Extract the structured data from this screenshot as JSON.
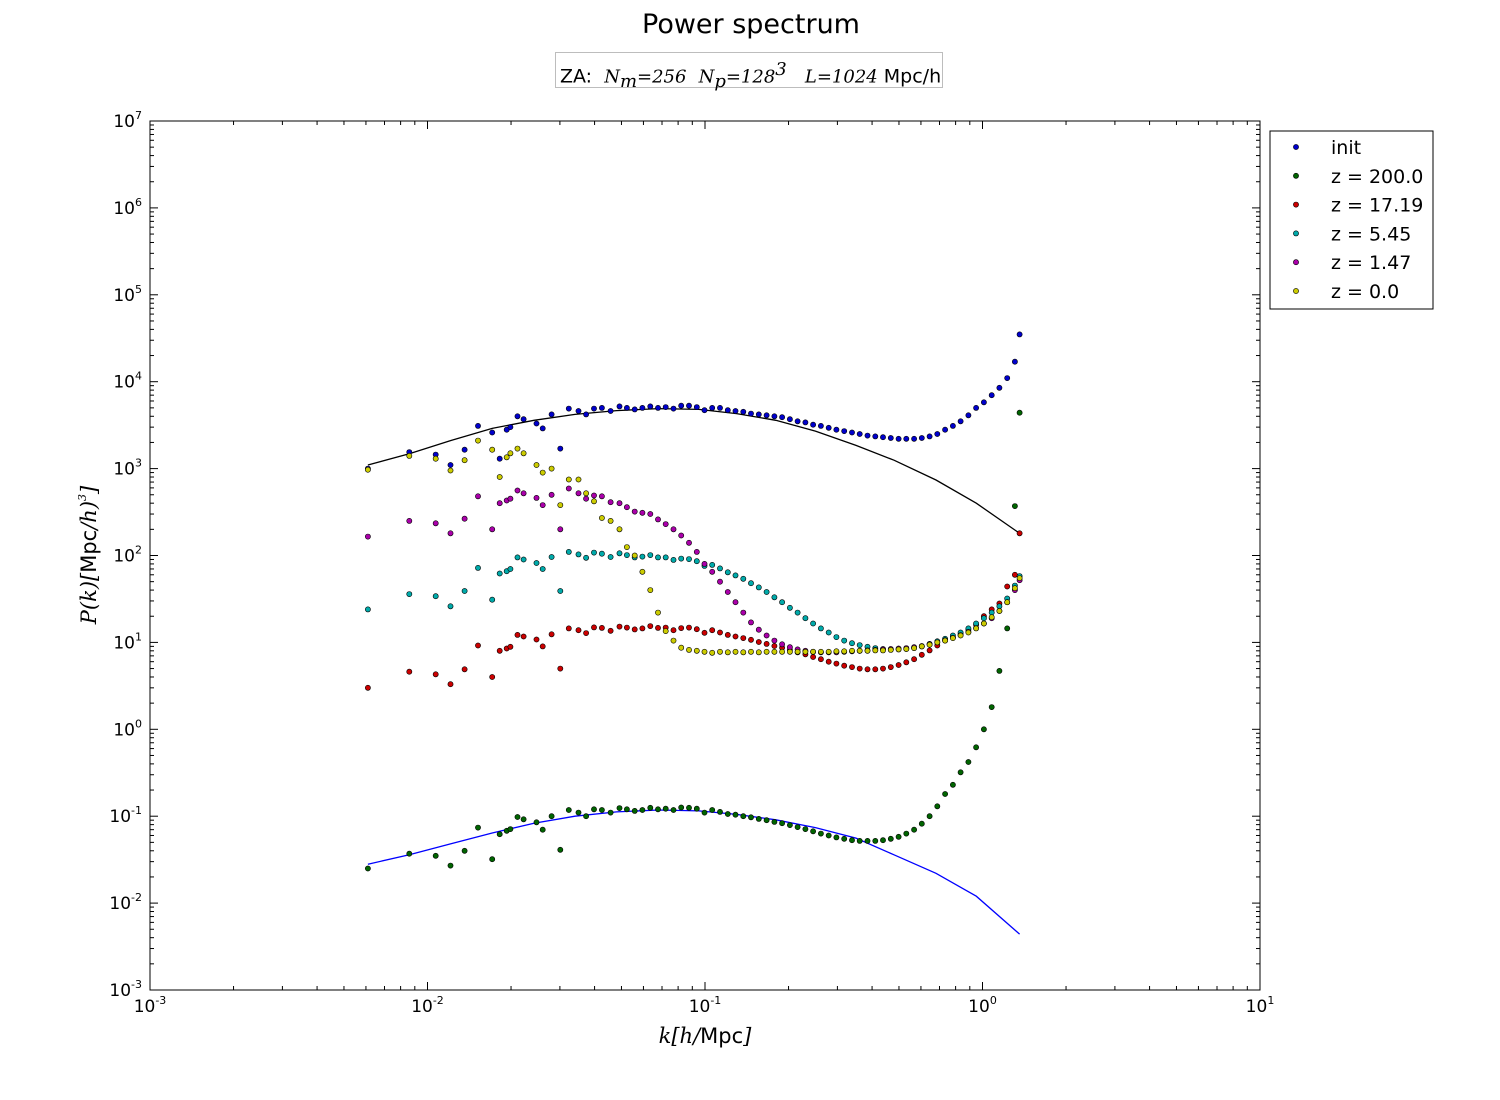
{
  "chart_data": {
    "type": "scatter",
    "title": "Power spectrum",
    "subtitle": {
      "prefix": "ZA:",
      "nm_symbol": "N",
      "nm_sub": "m",
      "nm_value": "=256",
      "np_symbol": "N",
      "np_sub": "p",
      "np_value": "=128",
      "np_sup": "3",
      "l_symbol": "L",
      "l_value": "=1024",
      "units": "Mpc/h"
    },
    "xlabel": {
      "math_pre": "k[h/",
      "text": "Mpc",
      "math_post": "]"
    },
    "ylabel": {
      "math_pre": "P(k)[",
      "text": "Mpc",
      "math_mid": "/h)",
      "sup": "3",
      "math_post": "]"
    },
    "xscale": "log",
    "yscale": "log",
    "xlim": [
      0.001,
      10
    ],
    "ylim": [
      0.001,
      10000000
    ],
    "x_ticks": [
      {
        "value": 0.001,
        "base": "10",
        "exp": "-3"
      },
      {
        "value": 0.01,
        "base": "10",
        "exp": "-2"
      },
      {
        "value": 0.1,
        "base": "10",
        "exp": "-1"
      },
      {
        "value": 1,
        "base": "10",
        "exp": "0"
      },
      {
        "value": 10,
        "base": "10",
        "exp": "1"
      }
    ],
    "y_ticks": [
      {
        "value": 0.001,
        "base": "10",
        "exp": "-3"
      },
      {
        "value": 0.01,
        "base": "10",
        "exp": "-2"
      },
      {
        "value": 0.1,
        "base": "10",
        "exp": "-1"
      },
      {
        "value": 1,
        "base": "10",
        "exp": "0"
      },
      {
        "value": 10,
        "base": "10",
        "exp": "1"
      },
      {
        "value": 100,
        "base": "10",
        "exp": "2"
      },
      {
        "value": 1000,
        "base": "10",
        "exp": "3"
      },
      {
        "value": 10000,
        "base": "10",
        "exp": "4"
      },
      {
        "value": 100000,
        "base": "10",
        "exp": "5"
      },
      {
        "value": 1000000,
        "base": "10",
        "exp": "6"
      },
      {
        "value": 10000000,
        "base": "10",
        "exp": "7"
      }
    ],
    "grid": false,
    "legend_position": "outside-right",
    "series": [
      {
        "name": "init",
        "color": "#0000cc",
        "x": [
          0.0061,
          0.0086,
          0.0107,
          0.0121,
          0.0136,
          0.0152,
          0.0171,
          0.0182,
          0.0193,
          0.0199,
          0.0211,
          0.0222,
          0.0247,
          0.026,
          0.028,
          0.0301,
          0.0323,
          0.035,
          0.0373,
          0.0398,
          0.0425,
          0.0457,
          0.0492,
          0.0523,
          0.0558,
          0.0595,
          0.0635,
          0.0677,
          0.0722,
          0.077,
          0.0821,
          0.0876,
          0.0934,
          0.0996,
          0.1062,
          0.1133,
          0.1208,
          0.1288,
          0.1374,
          0.1465,
          0.1563,
          0.1667,
          0.1778,
          0.1896,
          0.2022,
          0.2157,
          0.23,
          0.2453,
          0.2617,
          0.2791,
          0.2976,
          0.3175,
          0.3386,
          0.3611,
          0.3851,
          0.4107,
          0.438,
          0.4672,
          0.4983,
          0.5314,
          0.5667,
          0.6044,
          0.6446,
          0.6875,
          0.7332,
          0.782,
          0.834,
          0.8894,
          0.9486,
          1.0117,
          1.0789,
          1.1507,
          1.2272,
          1.3088,
          1.3608
        ],
        "y": [
          1000,
          1550,
          1450,
          1100,
          1650,
          3100,
          2600,
          1300,
          2800,
          3000,
          4000,
          3700,
          3300,
          2900,
          4200,
          1700,
          4900,
          4600,
          4200,
          4900,
          5000,
          4600,
          5200,
          5000,
          4800,
          5000,
          5200,
          5000,
          5100,
          4900,
          5300,
          5300,
          5100,
          4700,
          5000,
          5000,
          4700,
          4600,
          4500,
          4300,
          4200,
          4100,
          4000,
          3900,
          3700,
          3500,
          3400,
          3200,
          3100,
          2950,
          2800,
          2700,
          2600,
          2500,
          2400,
          2350,
          2300,
          2250,
          2200,
          2200,
          2200,
          2250,
          2350,
          2500,
          2800,
          3100,
          3500,
          4100,
          5000,
          5800,
          7000,
          8500,
          11000,
          17000,
          35000
        ]
      },
      {
        "name": "z = 200.0",
        "color": "#006400",
        "x": [
          0.0061,
          0.0086,
          0.0107,
          0.0121,
          0.0136,
          0.0152,
          0.0171,
          0.0182,
          0.0193,
          0.0199,
          0.0211,
          0.0222,
          0.0247,
          0.026,
          0.028,
          0.0301,
          0.0323,
          0.035,
          0.0373,
          0.0398,
          0.0425,
          0.0457,
          0.0492,
          0.0523,
          0.0558,
          0.0595,
          0.0635,
          0.0677,
          0.0722,
          0.077,
          0.0821,
          0.0876,
          0.0934,
          0.0996,
          0.1062,
          0.1133,
          0.1208,
          0.1288,
          0.1374,
          0.1465,
          0.1563,
          0.1667,
          0.1778,
          0.1896,
          0.2022,
          0.2157,
          0.23,
          0.2453,
          0.2617,
          0.2791,
          0.2976,
          0.3175,
          0.3386,
          0.3611,
          0.3851,
          0.4107,
          0.438,
          0.4672,
          0.4983,
          0.5314,
          0.5667,
          0.6044,
          0.6446,
          0.6875,
          0.7332,
          0.782,
          0.834,
          0.8894,
          0.9486,
          1.0117,
          1.0789,
          1.1507,
          1.2272,
          1.3088,
          1.3608
        ],
        "y": [
          0.025,
          0.037,
          0.035,
          0.027,
          0.04,
          0.074,
          0.032,
          0.062,
          0.068,
          0.071,
          0.098,
          0.092,
          0.085,
          0.07,
          0.1,
          0.041,
          0.118,
          0.11,
          0.1,
          0.12,
          0.118,
          0.11,
          0.124,
          0.12,
          0.115,
          0.118,
          0.125,
          0.12,
          0.122,
          0.118,
          0.126,
          0.125,
          0.122,
          0.11,
          0.118,
          0.112,
          0.106,
          0.104,
          0.1,
          0.097,
          0.093,
          0.09,
          0.086,
          0.083,
          0.079,
          0.075,
          0.071,
          0.067,
          0.063,
          0.06,
          0.057,
          0.055,
          0.053,
          0.052,
          0.052,
          0.052,
          0.053,
          0.055,
          0.058,
          0.063,
          0.07,
          0.082,
          0.1,
          0.13,
          0.18,
          0.23,
          0.32,
          0.42,
          0.62,
          1.0,
          1.8,
          4.7,
          14.5,
          370,
          4400
        ]
      },
      {
        "name": "z = 17.19",
        "color": "#cc0000",
        "x": [
          0.0061,
          0.0086,
          0.0107,
          0.0121,
          0.0136,
          0.0152,
          0.0171,
          0.0182,
          0.0193,
          0.0199,
          0.0211,
          0.0222,
          0.0247,
          0.026,
          0.028,
          0.0301,
          0.0323,
          0.035,
          0.0373,
          0.0398,
          0.0425,
          0.0457,
          0.0492,
          0.0523,
          0.0558,
          0.0595,
          0.0635,
          0.0677,
          0.0722,
          0.077,
          0.0821,
          0.0876,
          0.0934,
          0.0996,
          0.1062,
          0.1133,
          0.1208,
          0.1288,
          0.1374,
          0.1465,
          0.1563,
          0.1667,
          0.1778,
          0.1896,
          0.2022,
          0.2157,
          0.23,
          0.2453,
          0.2617,
          0.2791,
          0.2976,
          0.3175,
          0.3386,
          0.3611,
          0.3851,
          0.4107,
          0.438,
          0.4672,
          0.4983,
          0.5314,
          0.5667,
          0.6044,
          0.6446,
          0.6875,
          0.7332,
          0.782,
          0.834,
          0.8894,
          0.9486,
          1.0117,
          1.0789,
          1.1507,
          1.2272,
          1.3088,
          1.3608
        ],
        "y": [
          3.0,
          4.6,
          4.3,
          3.3,
          4.9,
          9.2,
          4.0,
          8.0,
          8.5,
          8.9,
          12.2,
          11.7,
          10.8,
          9.0,
          12.4,
          5.0,
          14.5,
          13.8,
          12.8,
          14.9,
          14.7,
          13.6,
          15.2,
          14.8,
          14.1,
          14.5,
          15.4,
          14.7,
          14.8,
          13.8,
          14.6,
          14.8,
          14.2,
          12.9,
          13.8,
          13.0,
          12.2,
          11.7,
          11.2,
          10.7,
          10.1,
          9.6,
          9.1,
          8.7,
          8.2,
          7.7,
          7.3,
          6.8,
          6.4,
          6.0,
          5.7,
          5.4,
          5.2,
          5.0,
          4.9,
          4.9,
          5.0,
          5.2,
          5.5,
          5.9,
          6.4,
          7.2,
          8.1,
          9.2,
          10.5,
          11.5,
          12.5,
          14.0,
          16.0,
          20.0,
          24.0,
          28.0,
          44.0,
          60.0,
          180
        ]
      },
      {
        "name": "z = 5.45",
        "color": "#00aaaa",
        "x": [
          0.0061,
          0.0086,
          0.0107,
          0.0121,
          0.0136,
          0.0152,
          0.0171,
          0.0182,
          0.0193,
          0.0199,
          0.0211,
          0.0222,
          0.0247,
          0.026,
          0.028,
          0.0301,
          0.0323,
          0.035,
          0.0373,
          0.0398,
          0.0425,
          0.0457,
          0.0492,
          0.0523,
          0.0558,
          0.0595,
          0.0635,
          0.0677,
          0.0722,
          0.077,
          0.0821,
          0.0876,
          0.0934,
          0.0996,
          0.1062,
          0.1133,
          0.1208,
          0.1288,
          0.1374,
          0.1465,
          0.1563,
          0.1667,
          0.1778,
          0.1896,
          0.2022,
          0.2157,
          0.23,
          0.2453,
          0.2617,
          0.2791,
          0.2976,
          0.3175,
          0.3386,
          0.3611,
          0.3851,
          0.4107,
          0.438,
          0.4672,
          0.4983,
          0.5314,
          0.5667,
          0.6044,
          0.6446,
          0.6875,
          0.7332,
          0.782,
          0.834,
          0.8894,
          0.9486,
          1.0117,
          1.0789,
          1.1507,
          1.2272,
          1.3088,
          1.3608
        ],
        "y": [
          24.0,
          36.0,
          34.0,
          26.0,
          39.0,
          72.0,
          31.0,
          62.0,
          66.0,
          70.0,
          95.0,
          90.0,
          82.0,
          70.0,
          96.0,
          39.0,
          110,
          103,
          94,
          108,
          105,
          96,
          106,
          101,
          95,
          97,
          101,
          95,
          95,
          89,
          92,
          91,
          86,
          76,
          78,
          71,
          64,
          59,
          54,
          48,
          43,
          38,
          33,
          29,
          25,
          22,
          19,
          16.5,
          14.5,
          13,
          11.5,
          10.5,
          9.8,
          9.3,
          8.9,
          8.6,
          8.4,
          8.3,
          8.3,
          8.4,
          8.6,
          9.0,
          9.6,
          10.3,
          11,
          12,
          13,
          14.5,
          16.5,
          19,
          22,
          26,
          32,
          45,
          58
        ]
      },
      {
        "name": "z = 1.47",
        "color": "#aa00aa",
        "x": [
          0.0061,
          0.0086,
          0.0107,
          0.0121,
          0.0136,
          0.0152,
          0.0171,
          0.0182,
          0.0193,
          0.0199,
          0.0211,
          0.0222,
          0.0247,
          0.026,
          0.028,
          0.0301,
          0.0323,
          0.035,
          0.0373,
          0.0398,
          0.0425,
          0.0457,
          0.0492,
          0.0523,
          0.0558,
          0.0595,
          0.0635,
          0.0677,
          0.0722,
          0.077,
          0.0821,
          0.0876,
          0.0934,
          0.0996,
          0.1062,
          0.1133,
          0.1208,
          0.1288,
          0.1374,
          0.1465,
          0.1563,
          0.1667,
          0.1778,
          0.1896,
          0.2022,
          0.2157,
          0.23,
          0.2453,
          0.2617,
          0.2791,
          0.2976,
          0.3175,
          0.3386,
          0.3611,
          0.3851,
          0.4107,
          0.438,
          0.4672,
          0.4983,
          0.5314,
          0.5667,
          0.6044,
          0.6446,
          0.6875,
          0.7332,
          0.782,
          0.834,
          0.8894,
          0.9486,
          1.0117,
          1.0789,
          1.1507,
          1.2272,
          1.3088,
          1.3608
        ],
        "y": [
          165,
          250,
          235,
          180,
          265,
          480,
          200,
          400,
          430,
          450,
          560,
          520,
          460,
          380,
          500,
          200,
          590,
          520,
          450,
          490,
          480,
          410,
          400,
          360,
          320,
          310,
          300,
          260,
          230,
          200,
          170,
          140,
          110,
          80,
          65,
          50,
          38,
          29,
          22,
          17,
          14,
          12,
          10.5,
          9.5,
          8.8,
          8.3,
          8.0,
          7.8,
          7.7,
          7.7,
          7.7,
          7.8,
          7.9,
          8.0,
          8.1,
          8.2,
          8.3,
          8.4,
          8.5,
          8.6,
          8.8,
          9.1,
          9.5,
          10.0,
          10.6,
          11.3,
          12.1,
          13.2,
          14.6,
          16.5,
          19,
          23,
          29,
          40,
          52
        ]
      },
      {
        "name": "z = 0.0",
        "color": "#cccc00",
        "x": [
          0.0061,
          0.0086,
          0.0107,
          0.0121,
          0.0136,
          0.0152,
          0.0171,
          0.0182,
          0.0193,
          0.0199,
          0.0211,
          0.0222,
          0.0247,
          0.026,
          0.028,
          0.0301,
          0.0323,
          0.035,
          0.0373,
          0.0398,
          0.0425,
          0.0457,
          0.0492,
          0.0523,
          0.0558,
          0.0595,
          0.0635,
          0.0677,
          0.0722,
          0.077,
          0.0821,
          0.0876,
          0.0934,
          0.0996,
          0.1062,
          0.1133,
          0.1208,
          0.1288,
          0.1374,
          0.1465,
          0.1563,
          0.1667,
          0.1778,
          0.1896,
          0.2022,
          0.2157,
          0.23,
          0.2453,
          0.2617,
          0.2791,
          0.2976,
          0.3175,
          0.3386,
          0.3611,
          0.3851,
          0.4107,
          0.438,
          0.4672,
          0.4983,
          0.5314,
          0.5667,
          0.6044,
          0.6446,
          0.6875,
          0.7332,
          0.782,
          0.834,
          0.8894,
          0.9486,
          1.0117,
          1.0789,
          1.1507,
          1.2272,
          1.3088,
          1.3608
        ],
        "y": [
          970,
          1400,
          1300,
          950,
          1250,
          2100,
          1650,
          800,
          1350,
          1500,
          1700,
          1500,
          1100,
          900,
          1000,
          380,
          750,
          750,
          520,
          420,
          270,
          250,
          200,
          125,
          100,
          65,
          40,
          22,
          13.5,
          10.5,
          8.7,
          8.2,
          8.0,
          7.8,
          7.6,
          7.8,
          7.7,
          7.8,
          7.7,
          7.8,
          7.7,
          7.8,
          7.8,
          7.8,
          7.8,
          7.8,
          7.8,
          7.8,
          7.8,
          7.8,
          7.9,
          7.9,
          8.0,
          8.0,
          8.0,
          8.1,
          8.1,
          8.2,
          8.3,
          8.4,
          8.6,
          9.0,
          9.4,
          10.0,
          10.5,
          11.2,
          12.0,
          13.0,
          14.5,
          16.5,
          19.5,
          23,
          29,
          42,
          55
        ]
      }
    ],
    "lines": [
      {
        "color": "#000000",
        "x": [
          0.0061,
          0.0086,
          0.0121,
          0.0171,
          0.0242,
          0.034,
          0.048,
          0.068,
          0.095,
          0.13,
          0.18,
          0.25,
          0.35,
          0.48,
          0.68,
          0.95,
          1.3608
        ],
        "y": [
          1100,
          1480,
          2100,
          2900,
          3600,
          4200,
          4650,
          4900,
          4800,
          4300,
          3600,
          2700,
          1850,
          1250,
          740,
          400,
          180
        ]
      },
      {
        "color": "#0000ff",
        "x": [
          0.0061,
          0.0086,
          0.0121,
          0.0171,
          0.0242,
          0.034,
          0.048,
          0.068,
          0.095,
          0.13,
          0.18,
          0.25,
          0.35,
          0.48,
          0.68,
          0.95,
          1.3608
        ],
        "y": [
          0.028,
          0.036,
          0.048,
          0.064,
          0.083,
          0.1,
          0.112,
          0.118,
          0.115,
          0.105,
          0.091,
          0.074,
          0.056,
          0.036,
          0.022,
          0.012,
          0.0044
        ]
      }
    ]
  }
}
